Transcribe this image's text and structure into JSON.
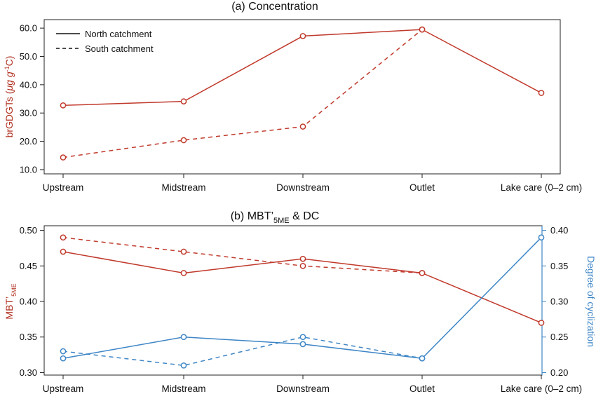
{
  "colors": {
    "red": "#c0392b",
    "blue": "#3d85c6",
    "axis": "#222222"
  },
  "chart_data": [
    {
      "type": "line",
      "title": "(a) Concentration",
      "categories": [
        "Upstream",
        "Midstream",
        "Downstream",
        "Outlet",
        "Lake care (0–2 cm)"
      ],
      "ylabel": "brGDGTs (",
      "ylabel_unit": "μg g",
      "ylabel_sup": "-1",
      "ylabel_end": "C)",
      "ylim": [
        8.5,
        63
      ],
      "yticks": [
        10,
        20,
        30,
        40,
        50,
        60
      ],
      "ytick_labels": [
        "10.0",
        "20.0",
        "30.0",
        "40.0",
        "50.0",
        "60.0"
      ],
      "legend": {
        "position": "top-left",
        "entries": [
          {
            "label": "North catchment",
            "dash": "solid"
          },
          {
            "label": "South catchment",
            "dash": "dashed"
          }
        ]
      },
      "series": [
        {
          "name": "North catchment",
          "axis": "left",
          "color": "red",
          "dash": "solid",
          "values": [
            32.7,
            34.1,
            57.2,
            59.5,
            37.1
          ]
        },
        {
          "name": "South catchment",
          "axis": "left",
          "color": "red",
          "dash": "dashed",
          "values": [
            14.3,
            20.4,
            25.2,
            59.5,
            null
          ]
        }
      ]
    },
    {
      "type": "line",
      "title": "(b) MBT’",
      "title_sub": "5ME",
      "title_end": " & DC",
      "categories": [
        "Upstream",
        "Midstream",
        "Downstream",
        "Outlet",
        "Lake care (0–2 cm)"
      ],
      "ylabel": "MBT’",
      "ylabel_sub": "5ME",
      "ylabel_right": "Degree of cyclization",
      "ylim": [
        0.2965,
        0.5065
      ],
      "yticks": [
        0.3,
        0.35,
        0.4,
        0.45,
        0.5
      ],
      "ytick_labels": [
        "0.30",
        "0.35",
        "0.40",
        "0.45",
        "0.50"
      ],
      "ylim_right": [
        0.1965,
        0.4065
      ],
      "yticks_right": [
        0.2,
        0.25,
        0.3,
        0.35,
        0.4
      ],
      "ytick_labels_right": [
        "0.20",
        "0.25",
        "0.30",
        "0.35",
        "0.40"
      ],
      "series": [
        {
          "name": "",
          "axis": "left",
          "color": "red",
          "dash": "solid",
          "values": [
            0.47,
            0.44,
            0.46,
            0.44,
            0.37
          ]
        },
        {
          "name": "",
          "axis": "left",
          "color": "red",
          "dash": "dashed",
          "values": [
            0.49,
            0.47,
            0.45,
            0.44,
            null
          ]
        },
        {
          "name": "",
          "axis": "right",
          "color": "blue",
          "dash": "solid",
          "values": [
            0.22,
            0.25,
            0.24,
            0.22,
            0.39
          ]
        },
        {
          "name": "",
          "axis": "right",
          "color": "blue",
          "dash": "dashed",
          "values": [
            0.23,
            0.21,
            0.25,
            0.22,
            null
          ]
        }
      ]
    }
  ]
}
